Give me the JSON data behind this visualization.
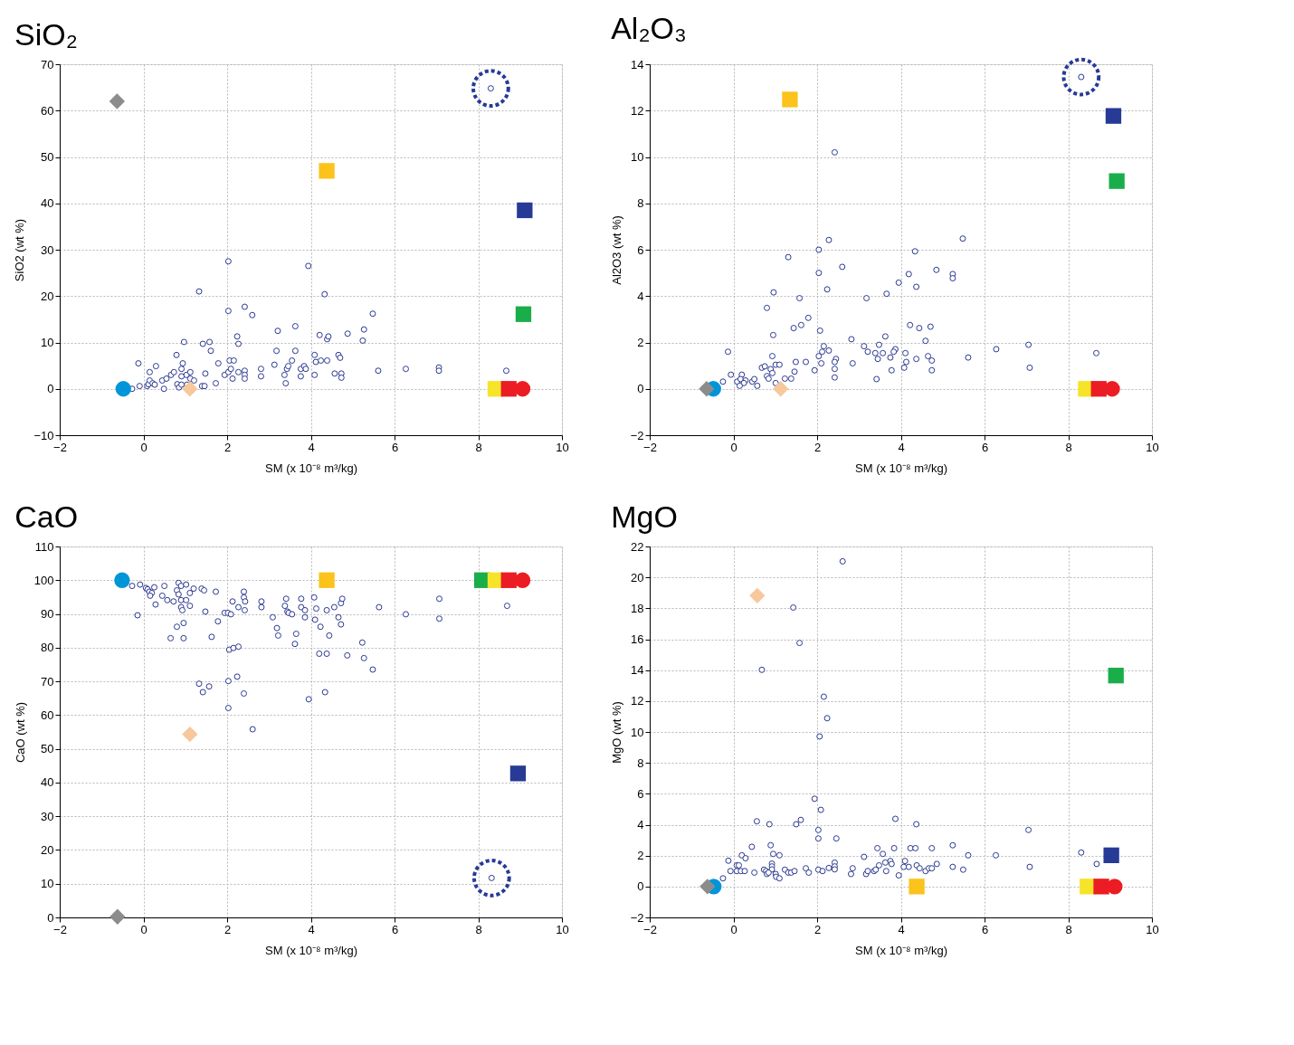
{
  "chart_data": [
    {
      "type": "scatter",
      "title": "SiO₂",
      "xlabel": "SM (x 10⁻⁸ m³/kg)",
      "ylabel": "SiO2 (wt %)",
      "xlim": [
        -2,
        10
      ],
      "ylim": [
        -10,
        70
      ],
      "xticks": [
        -2,
        0,
        2,
        4,
        6,
        8,
        10
      ],
      "yticks": [
        -10,
        0,
        10,
        20,
        30,
        40,
        50,
        60,
        70
      ],
      "grid": true,
      "series": [
        {
          "color": "#2b3990",
          "marker": "circle",
          "x": [
            -0.27,
            -0.09,
            -0.12,
            0.09,
            0.12,
            0.15,
            0.15,
            0.22,
            0.27,
            0.3,
            0.45,
            0.49,
            0.55,
            0.66,
            0.73,
            0.79,
            0.81,
            0.85,
            0.91,
            0.91,
            0.94,
            0.91,
            0.97,
            1.03,
            1.12,
            1.12,
            1.21,
            1.04,
            1.4,
            1.46,
            1.48,
            1.33,
            1.42,
            1.58,
            1.61,
            1.73,
            1.79,
            1.94,
            2.03,
            2.09,
            2.13,
            2.03,
            2.03,
            2.06,
            2.16,
            2.24,
            2.27,
            2.27,
            2.42,
            2.42,
            2.42,
            2.42,
            2.6,
            2.81,
            2.81,
            3.13,
            3.18,
            3.21,
            3.37,
            3.4,
            3.43,
            3.46,
            3.55,
            3.63,
            3.63,
            3.76,
            3.76,
            3.84,
            3.88,
            3.94,
            4.09,
            4.12,
            4.09,
            4.21,
            4.24,
            4.39,
            4.33,
            4.39,
            4.42,
            4.57,
            4.66,
            4.7,
            4.73,
            4.73,
            4.88,
            5.24,
            5.27,
            5.48,
            5.61,
            6.27,
            7.06,
            7.06,
            8.67,
            8.3
          ],
          "values": [
            0,
            0.6,
            5.5,
            0.6,
            1.0,
            3.6,
            1.8,
            1.2,
            0.9,
            4.9,
            1.8,
            0,
            2.2,
            3.0,
            3.6,
            7.3,
            1.0,
            0.3,
            2.7,
            4.3,
            5.5,
            0.9,
            10.1,
            3.0,
            3.6,
            2.2,
            1.8,
            0.9,
            0.6,
            0.6,
            3.3,
            21.0,
            9.7,
            10.1,
            8.2,
            1.2,
            5.5,
            3.0,
            3.6,
            4.3,
            2.2,
            27.5,
            16.8,
            6.1,
            6.1,
            11.3,
            9.7,
            3.6,
            3.9,
            3.0,
            2.2,
            17.7,
            15.9,
            4.3,
            2.7,
            5.2,
            8.2,
            12.5,
            3.0,
            1.2,
            4.3,
            4.9,
            6.1,
            8.2,
            13.5,
            4.3,
            2.7,
            4.9,
            4.3,
            26.5,
            7.3,
            5.8,
            3.0,
            11.6,
            6.1,
            6.1,
            20.4,
            10.7,
            11.3,
            3.3,
            7.3,
            6.7,
            3.3,
            2.4,
            11.9,
            10.4,
            12.8,
            16.2,
            3.9,
            4.3,
            4.6,
            3.9,
            3.9,
            64.8
          ]
        },
        {
          "color": "#0095d9",
          "marker": "circle",
          "x": [
            -0.48
          ],
          "values": [
            0
          ]
        },
        {
          "color": "#8c8c8c",
          "marker": "diamond",
          "x": [
            -0.63
          ],
          "values": [
            62
          ]
        },
        {
          "color": "#f6c89c",
          "marker": "diamond",
          "x": [
            1.11
          ],
          "values": [
            0
          ]
        },
        {
          "color": "#fbc31b",
          "marker": "square",
          "x": [
            4.38
          ],
          "values": [
            47
          ]
        },
        {
          "color": "#263a96",
          "marker": "square",
          "x": [
            9.11
          ],
          "values": [
            38.5
          ]
        },
        {
          "color": "#1aae4a",
          "marker": "square",
          "x": [
            9.08
          ],
          "values": [
            16.1
          ]
        },
        {
          "color": "#f5e42a",
          "marker": "square",
          "x": [
            8.41
          ],
          "values": [
            0
          ]
        },
        {
          "color": "#ec1c24",
          "marker": "square",
          "x": [
            8.73
          ],
          "values": [
            0
          ]
        },
        {
          "color": "#ec1c24",
          "marker": "circle",
          "x": [
            9.06
          ],
          "values": [
            0
          ]
        },
        {
          "color": "#263a96",
          "marker": "circle",
          "line_style": "dashed",
          "x": [
            8.3
          ],
          "values": [
            64.8
          ]
        }
      ]
    },
    {
      "type": "scatter",
      "title": "Al₂O₃",
      "xlabel": "SM (x 10⁻⁸ m³/kg)",
      "ylabel": "Al2O3 (wt %)",
      "xlim": [
        -2,
        10
      ],
      "ylim": [
        -2,
        14
      ],
      "xticks": [
        -2,
        0,
        2,
        4,
        6,
        8,
        10
      ],
      "yticks": [
        -2,
        0,
        2,
        4,
        6,
        8,
        10,
        12,
        14
      ],
      "grid": true,
      "series": [
        {
          "color": "#2b3990",
          "marker": "circle",
          "x": [
            2.42,
            2.28,
            5.48,
            2.04,
            4.34,
            1.31,
            2.6,
            4.85,
            5.24,
            5.24,
            2.04,
            4.19,
            3.95,
            4.37,
            2.24,
            0.96,
            3.66,
            3.18,
            1.58,
            0.8,
            1.79,
            1.44,
            1.62,
            2.07,
            4.22,
            4.44,
            4.71,
            0.95,
            3.63,
            4.59,
            2.82,
            3.12,
            3.48,
            2.16,
            -0.13,
            3.87,
            3.83,
            3.21,
            3.39,
            3.57,
            2.12,
            2.28,
            4.11,
            6.28,
            7.05,
            8.67,
            0.93,
            2.04,
            2.45,
            2.42,
            3.45,
            3.75,
            4.65,
            4.74,
            4.37,
            4.13,
            5.61,
            1.49,
            1.73,
            2.1,
            2.85,
            1.01,
            1.1,
            0.68,
            0.75,
            0.89,
            0.93,
            1.46,
            1.94,
            2.42,
            3.78,
            4.08,
            4.74,
            7.08,
            -0.06,
            0.2,
            0.8,
            0.84,
            1.23,
            1.38,
            2.42,
            3.42,
            -0.25,
            0.09,
            0.17,
            0.29,
            0.25,
            0.15,
            0.45,
            0.5,
            0.57,
            1.01,
            8.31
          ],
          "values": [
            10.2,
            6.42,
            6.48,
            6.0,
            5.93,
            5.68,
            5.26,
            5.13,
            4.95,
            4.77,
            5.0,
            4.95,
            4.58,
            4.4,
            4.29,
            4.16,
            4.1,
            3.91,
            3.91,
            3.49,
            3.06,
            2.62,
            2.75,
            2.51,
            2.75,
            2.62,
            2.68,
            2.32,
            2.26,
            2.07,
            2.14,
            1.84,
            1.9,
            1.84,
            1.6,
            1.71,
            1.6,
            1.6,
            1.54,
            1.54,
            1.6,
            1.65,
            1.54,
            1.71,
            1.9,
            1.54,
            1.41,
            1.41,
            1.29,
            1.16,
            1.29,
            1.35,
            1.41,
            1.22,
            1.29,
            1.16,
            1.35,
            1.16,
            1.16,
            1.1,
            1.1,
            1.04,
            1.04,
            0.91,
            0.97,
            0.85,
            0.68,
            0.74,
            0.8,
            0.86,
            0.8,
            0.91,
            0.8,
            0.91,
            0.61,
            0.61,
            0.55,
            0.44,
            0.44,
            0.44,
            0.49,
            0.42,
            0.31,
            0.31,
            0.42,
            0.36,
            0.25,
            0.13,
            0.31,
            0.42,
            0.13,
            0.25,
            13.45
          ]
        },
        {
          "color": "#0095d9",
          "marker": "circle",
          "x": [
            -0.48
          ],
          "values": [
            0
          ]
        },
        {
          "color": "#8c8c8c",
          "marker": "diamond",
          "x": [
            -0.64
          ],
          "values": [
            0
          ]
        },
        {
          "color": "#f6c89c",
          "marker": "diamond",
          "x": [
            1.13
          ],
          "values": [
            0
          ]
        },
        {
          "color": "#fbc31b",
          "marker": "square",
          "x": [
            1.35
          ],
          "values": [
            12.48
          ]
        },
        {
          "color": "#263a96",
          "marker": "square",
          "x": [
            9.08
          ],
          "values": [
            11.77
          ]
        },
        {
          "color": "#1aae4a",
          "marker": "square",
          "x": [
            9.16
          ],
          "values": [
            8.96
          ]
        },
        {
          "color": "#f5e42a",
          "marker": "square",
          "x": [
            8.42
          ],
          "values": [
            0
          ]
        },
        {
          "color": "#ec1c24",
          "marker": "square",
          "x": [
            8.73
          ],
          "values": [
            0
          ]
        },
        {
          "color": "#ec1c24",
          "marker": "circle",
          "x": [
            9.05
          ],
          "values": [
            0
          ]
        },
        {
          "color": "#263a96",
          "marker": "circle",
          "line_style": "dashed",
          "x": [
            8.31
          ],
          "values": [
            13.45
          ]
        }
      ]
    },
    {
      "type": "scatter",
      "title": "CaO",
      "xlabel": "SM (x 10⁻⁸ m³/kg)",
      "ylabel": "CaO (wt %)",
      "xlim": [
        -2,
        10
      ],
      "ylim": [
        0,
        110
      ],
      "xticks": [
        -2,
        0,
        2,
        4,
        6,
        8,
        10
      ],
      "yticks": [
        0,
        10,
        20,
        30,
        40,
        50,
        60,
        70,
        80,
        90,
        100,
        110
      ],
      "grid": true,
      "series": [
        {
          "color": "#2b3990",
          "marker": "circle",
          "x": [
            -0.27,
            -0.08,
            -0.14,
            0.06,
            0.1,
            0.14,
            0.2,
            0.16,
            0.26,
            0.29,
            0.45,
            0.5,
            0.57,
            0.65,
            0.72,
            0.8,
            0.8,
            0.84,
            0.84,
            0.9,
            0.9,
            0.9,
            0.93,
            0.96,
            0.96,
            1.02,
            1.02,
            1.11,
            1.11,
            1.2,
            1.39,
            1.45,
            1.48,
            1.63,
            1.73,
            1.78,
            1.33,
            1.42,
            1.57,
            2.03,
            2.03,
            2.24,
            2.4,
            2.61,
            2.05,
            2.15,
            2.27,
            1.94,
            2.02,
            2.09,
            2.13,
            2.27,
            2.4,
            2.4,
            2.43,
            2.42,
            2.82,
            2.82,
            3.09,
            3.19,
            3.22,
            3.38,
            3.44,
            3.47,
            3.41,
            3.55,
            3.62,
            3.65,
            3.77,
            3.77,
            3.86,
            3.86,
            3.95,
            4.08,
            4.13,
            4.1,
            4.23,
            4.2,
            4.38,
            4.34,
            4.38,
            4.44,
            4.56,
            4.66,
            4.72,
            4.72,
            4.75,
            4.87,
            5.23,
            5.27,
            5.48,
            5.63,
            6.27,
            7.07,
            7.07,
            8.69,
            8.32
          ],
          "values": [
            98.3,
            98.7,
            89.6,
            97.7,
            97.3,
            96.6,
            96.2,
            95.4,
            97.9,
            92.8,
            95.4,
            98.3,
            94.1,
            82.8,
            93.7,
            86.2,
            97.0,
            95.8,
            99.2,
            98.3,
            94.1,
            92.0,
            91.1,
            87.3,
            82.8,
            98.7,
            94.1,
            96.2,
            92.4,
            97.5,
            97.5,
            97.0,
            90.7,
            83.2,
            96.6,
            87.8,
            69.3,
            66.8,
            68.5,
            70.1,
            62.1,
            71.4,
            66.4,
            55.8,
            79.4,
            79.9,
            80.3,
            90.3,
            90.3,
            89.9,
            93.7,
            92.0,
            96.6,
            94.9,
            93.7,
            91.1,
            93.7,
            92.0,
            89.0,
            85.8,
            83.6,
            92.4,
            90.7,
            90.3,
            94.5,
            89.9,
            81.1,
            84.1,
            94.5,
            92.0,
            91.1,
            89.0,
            64.7,
            94.9,
            91.6,
            88.3,
            86.2,
            78.2,
            78.2,
            66.8,
            91.1,
            83.6,
            92.0,
            89.0,
            86.9,
            93.2,
            94.5,
            77.7,
            81.5,
            76.9,
            73.5,
            92.0,
            89.9,
            94.5,
            88.6,
            92.4,
            11.7
          ]
        },
        {
          "color": "#0095d9",
          "marker": "circle",
          "x": [
            -0.51
          ],
          "values": [
            100
          ]
        },
        {
          "color": "#8c8c8c",
          "marker": "diamond",
          "x": [
            -0.62
          ],
          "values": [
            0.2
          ]
        },
        {
          "color": "#f6c89c",
          "marker": "diamond",
          "x": [
            1.11
          ],
          "values": [
            54.3
          ]
        },
        {
          "color": "#fbc31b",
          "marker": "square",
          "x": [
            4.38
          ],
          "values": [
            100
          ]
        },
        {
          "color": "#263a96",
          "marker": "square",
          "x": [
            8.95
          ],
          "values": [
            42.7
          ]
        },
        {
          "color": "#1aae4a",
          "marker": "square",
          "x": [
            8.09
          ],
          "values": [
            100
          ]
        },
        {
          "color": "#f5e42a",
          "marker": "square",
          "x": [
            8.41
          ],
          "values": [
            100
          ]
        },
        {
          "color": "#ec1c24",
          "marker": "square",
          "x": [
            8.73
          ],
          "values": [
            100
          ]
        },
        {
          "color": "#ec1c24",
          "marker": "circle",
          "x": [
            9.06
          ],
          "values": [
            100
          ]
        },
        {
          "color": "#263a96",
          "marker": "circle",
          "line_style": "dashed",
          "x": [
            8.32
          ],
          "values": [
            11.7
          ]
        }
      ]
    },
    {
      "type": "scatter",
      "title": "MgO",
      "xlabel": "SM (x 10⁻⁸ m³/kg)",
      "ylabel": "MgO (wt %)",
      "xlim": [
        -2,
        10
      ],
      "ylim": [
        -2,
        22
      ],
      "xticks": [
        -2,
        0,
        2,
        4,
        6,
        8,
        10
      ],
      "yticks": [
        -2,
        0,
        2,
        4,
        6,
        8,
        10,
        12,
        14,
        16,
        18,
        20,
        22
      ],
      "grid": true,
      "series": [
        {
          "color": "#2b3990",
          "marker": "circle",
          "x": [
            2.61,
            1.43,
            1.58,
            0.68,
            2.16,
            2.24,
            2.06,
            1.94,
            2.09,
            3.87,
            0.56,
            0.86,
            1.5,
            1.61,
            4.37,
            2.03,
            2.03,
            2.46,
            7.05,
            0.44,
            0.89,
            5.24,
            3.44,
            3.84,
            4.23,
            4.35,
            4.74,
            0.2,
            0.29,
            0.95,
            1.1,
            3.12,
            3.57,
            5.61,
            6.27,
            8.31,
            -0.12,
            0.92,
            0.92,
            0.92,
            2.42,
            2.42,
            2.42,
            2.28,
            3.75,
            3.78,
            3.63,
            3.48,
            4.1,
            4.07,
            4.19,
            4.38,
            4.86,
            4.45,
            4.59,
            4.67,
            4.74,
            5.24,
            5.49,
            7.08,
            8.68,
            0.08,
            0.13,
            -0.07,
            0.08,
            0.18,
            0.27,
            0.5,
            0.73,
            0.78,
            0.8,
            0.84,
            1.01,
            1.02,
            1.1,
            1.23,
            1.31,
            1.38,
            1.46,
            1.73,
            1.8,
            2.03,
            2.13,
            2.85,
            2.81,
            3.17,
            3.21,
            3.36,
            3.4,
            3.65,
            3.95,
            -0.25
          ],
          "values": [
            21.04,
            18.05,
            15.76,
            14.02,
            12.28,
            10.89,
            9.71,
            5.68,
            4.96,
            4.38,
            4.22,
            4.03,
            4.03,
            4.31,
            4.03,
            3.66,
            3.11,
            3.11,
            3.66,
            2.57,
            2.67,
            2.67,
            2.48,
            2.48,
            2.48,
            2.48,
            2.48,
            2.02,
            1.83,
            2.11,
            2.02,
            1.92,
            2.11,
            2.02,
            2.02,
            2.2,
            1.67,
            1.48,
            1.3,
            1.11,
            1.55,
            1.3,
            1.11,
            1.2,
            1.65,
            1.46,
            1.55,
            1.37,
            1.65,
            1.27,
            1.27,
            1.37,
            1.46,
            1.18,
            1.0,
            1.18,
            1.18,
            1.27,
            1.09,
            1.27,
            1.46,
            1.37,
            1.37,
            1.0,
            1.0,
            1.0,
            1.0,
            0.9,
            1.09,
            1.0,
            0.81,
            0.9,
            0.81,
            0.63,
            0.53,
            1.09,
            0.9,
            0.9,
            1.0,
            1.18,
            0.9,
            1.09,
            1.0,
            1.18,
            0.81,
            0.81,
            1.0,
            1.0,
            1.09,
            1.0,
            0.72,
            0.53
          ]
        },
        {
          "color": "#0095d9",
          "marker": "circle",
          "x": [
            -0.47
          ],
          "values": [
            0
          ]
        },
        {
          "color": "#8c8c8c",
          "marker": "diamond",
          "x": [
            -0.62
          ],
          "values": [
            0
          ]
        },
        {
          "color": "#f6c89c",
          "marker": "diamond",
          "x": [
            0.57
          ],
          "values": [
            18.82
          ]
        },
        {
          "color": "#fbc31b",
          "marker": "square",
          "x": [
            4.38
          ],
          "values": [
            0
          ]
        },
        {
          "color": "#263a96",
          "marker": "square",
          "x": [
            9.03
          ],
          "values": [
            2.02
          ]
        },
        {
          "color": "#1aae4a",
          "marker": "square",
          "x": [
            9.14
          ],
          "values": [
            13.65
          ]
        },
        {
          "color": "#f5e42a",
          "marker": "square",
          "x": [
            8.46
          ],
          "values": [
            0
          ]
        },
        {
          "color": "#ec1c24",
          "marker": "square",
          "x": [
            8.79
          ],
          "values": [
            0
          ]
        },
        {
          "color": "#ec1c24",
          "marker": "circle",
          "x": [
            9.11
          ],
          "values": [
            0
          ]
        }
      ]
    }
  ]
}
